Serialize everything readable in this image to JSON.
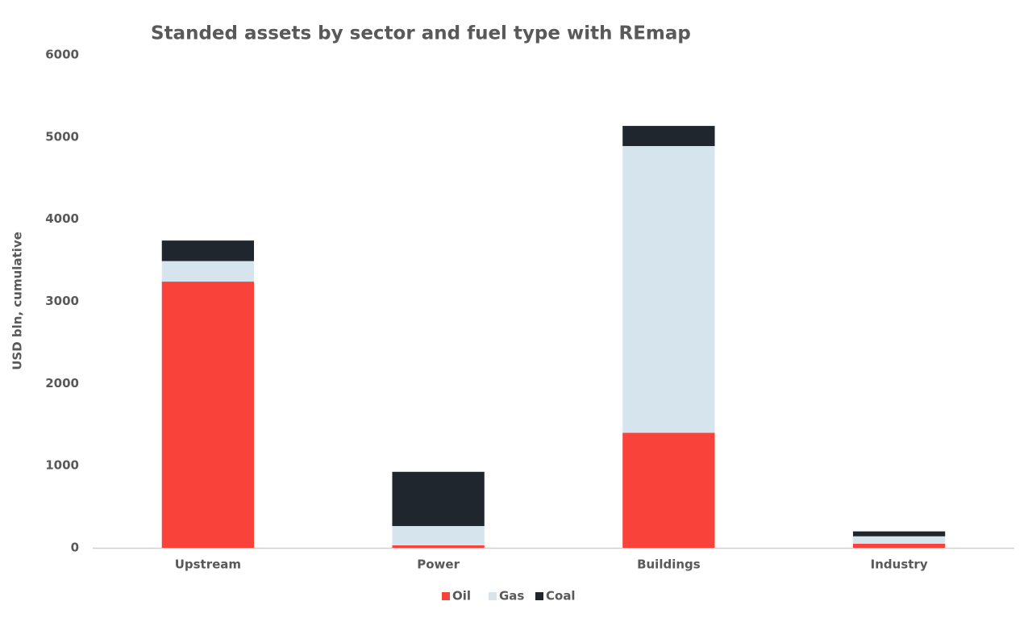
{
  "chart_data": {
    "type": "bar",
    "stacked": true,
    "title": "Standed assets by sector and fuel type with REmap",
    "y_label": "USD bln, cumulative",
    "categories": [
      "Upstream",
      "Power",
      "Buildings",
      "Industry"
    ],
    "series": [
      {
        "name": "Oil",
        "color": "#f9423a",
        "values": [
          3240,
          30,
          1400,
          50
        ]
      },
      {
        "name": "Gas",
        "color": "#d6e4ee",
        "values": [
          250,
          235,
          3490,
          90
        ]
      },
      {
        "name": "Coal",
        "color": "#1f262d",
        "values": [
          250,
          660,
          245,
          60
        ]
      }
    ],
    "ylim": [
      0,
      6000
    ],
    "yticks": [
      0,
      1000,
      2000,
      3000,
      4000,
      5000,
      6000
    ],
    "grid": false,
    "legend": "bottom"
  }
}
